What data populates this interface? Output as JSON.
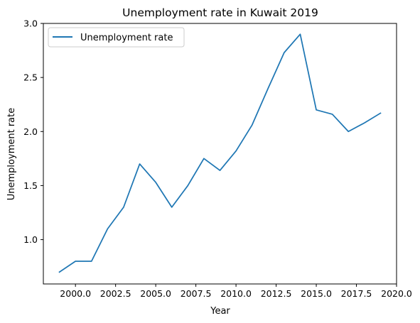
{
  "chart_data": {
    "type": "line",
    "title": "Unemployment rate in Kuwait 2019",
    "xlabel": "Year",
    "ylabel": "Unemployment rate",
    "xlim": [
      1998.0,
      2020.0
    ],
    "ylim": [
      0.59,
      3.0
    ],
    "x_ticks": [
      2000.0,
      2002.5,
      2005.0,
      2007.5,
      2010.0,
      2012.5,
      2015.0,
      2017.5,
      2020.0
    ],
    "x_tick_labels": [
      "2000.0",
      "2002.5",
      "2005.0",
      "2007.5",
      "2010.0",
      "2012.5",
      "2015.0",
      "2017.5",
      "2020.0"
    ],
    "y_ticks": [
      1.0,
      1.5,
      2.0,
      2.5,
      3.0
    ],
    "y_tick_labels": [
      "1.0",
      "1.5",
      "2.0",
      "2.5",
      "3.0"
    ],
    "grid": false,
    "legend_position": "top-left",
    "series": [
      {
        "name": "Unemployment rate",
        "color": "#1f77b4",
        "x": [
          1999,
          2000,
          2001,
          2002,
          2003,
          2004,
          2005,
          2006,
          2007,
          2008,
          2009,
          2010,
          2011,
          2012,
          2013,
          2014,
          2015,
          2016,
          2017,
          2018,
          2019
        ],
        "y": [
          0.7,
          0.8,
          0.8,
          1.1,
          1.3,
          1.7,
          1.53,
          1.3,
          1.5,
          1.75,
          1.64,
          1.82,
          2.06,
          2.4,
          2.73,
          2.9,
          2.2,
          2.16,
          2.0,
          2.08,
          2.17
        ]
      }
    ]
  }
}
